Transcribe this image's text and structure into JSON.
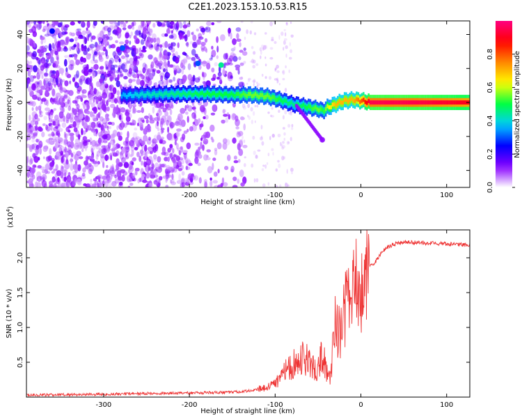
{
  "title": "C2E1.2023.153.10.53.R15",
  "chart_data": [
    {
      "type": "heatmap",
      "xlabel": "Height of straight line (km)",
      "ylabel": "Frequency (Hz)",
      "xlim": [
        -390,
        127
      ],
      "ylim": [
        -50,
        48
      ],
      "xticks": [
        -300,
        -200,
        -100,
        0,
        100
      ],
      "xtick_labels": [
        "-300",
        "-200",
        "-100",
        "0",
        "100"
      ],
      "yticks": [
        -40,
        -20,
        0,
        20,
        40
      ],
      "ytick_labels": [
        "-40",
        "-20",
        "0",
        "20",
        "40"
      ],
      "colorbar": {
        "label": "Normalized spectral amplitude",
        "range": [
          0,
          1
        ],
        "ticks": [
          0.0,
          0.2,
          0.4,
          0.6,
          0.8
        ],
        "tick_labels": [
          "0.0",
          "0.2",
          "0.4",
          "0.6",
          "0.8"
        ],
        "colormap": [
          "#ffffff",
          "#8800ff",
          "#0000ff",
          "#00ccff",
          "#00ff44",
          "#ffff00",
          "#ff8800",
          "#ff0000",
          "#ff0080"
        ]
      },
      "ridge": {
        "x": [
          -280,
          -260,
          -220,
          -180,
          -150,
          -130,
          -110,
          -95,
          -80,
          -65,
          -50,
          -45,
          -40,
          -30,
          -20,
          -10,
          0,
          10,
          60,
          127
        ],
        "frequency": [
          4,
          4.5,
          5,
          5,
          4.5,
          4.5,
          3.5,
          1.5,
          -1,
          -2.5,
          -4,
          -5,
          -3,
          -1,
          1,
          1.5,
          1,
          0,
          0,
          0
        ],
        "amplitude": [
          0.35,
          0.4,
          0.45,
          0.5,
          0.5,
          0.55,
          0.55,
          0.5,
          0.45,
          0.5,
          0.55,
          0.5,
          0.6,
          0.7,
          0.7,
          0.7,
          0.8,
          0.95,
          0.95,
          0.9
        ]
      },
      "features": [
        {
          "x": -360,
          "frequency": 42,
          "amplitude": 0.25
        },
        {
          "x": -278,
          "frequency": 32,
          "amplitude": 0.3
        },
        {
          "x": -190,
          "frequency": 23,
          "amplitude": 0.3
        },
        {
          "x": -163,
          "frequency": 22,
          "amplitude": 0.45
        },
        {
          "x": -45,
          "frequency": -22,
          "amplitude": 0.1
        }
      ]
    },
    {
      "type": "line",
      "xlabel": "Height of straight line (km)",
      "ylabel": "SNR (10 * v/v)",
      "scale_label": "(x10",
      "scale_exponent": "4",
      "scale_close": ")",
      "xlim": [
        -390,
        127
      ],
      "ylim": [
        0,
        24000
      ],
      "xticks": [
        -300,
        -200,
        -100,
        0,
        100
      ],
      "xtick_labels": [
        "-300",
        "-200",
        "-100",
        "0",
        "100"
      ],
      "yticks": [
        5000,
        10000,
        15000,
        20000
      ],
      "ytick_labels": [
        "0.5",
        "1.0",
        "1.5",
        "2.0"
      ],
      "color": "#ee3333",
      "series": [
        {
          "x": [
            -390,
            -300,
            -260,
            -200,
            -150,
            -130,
            -110,
            -100,
            -90,
            -80,
            -70,
            -60,
            -50,
            -45,
            -40,
            -35,
            -30,
            -25,
            -20,
            -15,
            -10,
            -5,
            0,
            5,
            10,
            15,
            20,
            30,
            40,
            50,
            60,
            80,
            100,
            127
          ],
          "values": [
            300,
            400,
            500,
            600,
            700,
            900,
            1300,
            2000,
            3500,
            4500,
            6000,
            5000,
            4000,
            6500,
            3500,
            3000,
            11000,
            9000,
            12000,
            14000,
            15000,
            16000,
            15000,
            17000,
            19000,
            19000,
            20000,
            21500,
            22000,
            22200,
            22200,
            22100,
            22000,
            21800
          ]
        }
      ]
    }
  ]
}
